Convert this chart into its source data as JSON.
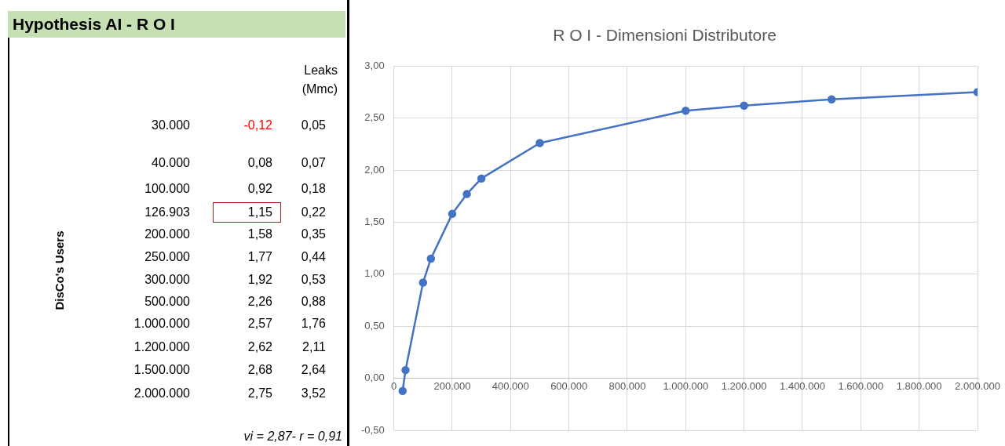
{
  "chart_data": [
    {
      "type": "other",
      "title": "Hypothesis AI - R O I",
      "ylabel": "DisCo's Users",
      "categories": [
        "30.000",
        "40.000",
        "100.000",
        "126.903",
        "200.000",
        "250.000",
        "300.000",
        "500.000",
        "1.000.000",
        "1.200.000",
        "1.500.000",
        "2.000.000"
      ],
      "series": [
        {
          "colors": [
            "#ff0000",
            "#000000",
            "#000000",
            "#000000",
            "#000000",
            "#000000",
            "#000000",
            "#000000",
            "#000000",
            "#000000",
            "#000000",
            "#000000"
          ],
          "values": [
            -0.12,
            0.08,
            0.92,
            1.15,
            1.58,
            1.77,
            1.92,
            2.26,
            2.57,
            2.62,
            2.68,
            2.75
          ],
          "value_labels": [
            "-0,12",
            "0,08",
            "0,92",
            "1,15",
            "1,58",
            "1,77",
            "1,92",
            "2,26",
            "2,57",
            "2,62",
            "2,68",
            "2,75"
          ]
        },
        {
          "name": "Leaks (Mmc)",
          "color": "#000000",
          "values": [
            0.05,
            0.07,
            0.18,
            0.22,
            0.35,
            0.44,
            0.53,
            0.88,
            1.76,
            2.11,
            2.64,
            3.52
          ],
          "value_labels": [
            "0,05",
            "0,07",
            "0,18",
            "0,22",
            "0,35",
            "0,44",
            "0,53",
            "0,88",
            "1,76",
            "2,11",
            "2,64",
            "3,52"
          ]
        }
      ],
      "annotations": [
        "vi = 2,87- r = 0,91"
      ]
    },
    {
      "type": "line",
      "title": "R O I - Dimensioni Distributore",
      "x": [
        30000,
        40000,
        100000,
        126903,
        200000,
        250000,
        300000,
        500000,
        1000000,
        1200000,
        1500000,
        2000000
      ],
      "values": [
        -0.12,
        0.08,
        0.92,
        1.15,
        1.58,
        1.77,
        1.92,
        2.26,
        2.57,
        2.62,
        2.68,
        2.75
      ],
      "color": "#4472c4",
      "marker": "circle",
      "line_style": "solid",
      "grid": true,
      "xlim": [
        0,
        2000000
      ],
      "xticks": [
        0,
        {
          "value": 200000,
          "label": "200.000"
        },
        {
          "value": 400000,
          "label": "400.000"
        },
        {
          "value": 600000,
          "label": "600.000"
        },
        {
          "value": 800000,
          "label": "800.000"
        },
        {
          "value": 1000000,
          "label": "1.000.000"
        },
        {
          "value": 1200000,
          "label": "1.200.000"
        },
        {
          "value": 1400000,
          "label": "1.400.000"
        },
        {
          "value": 1600000,
          "label": "1.600.000"
        },
        {
          "value": 1800000,
          "label": "1.800.000"
        },
        {
          "value": 2000000,
          "label": "2.000.000"
        }
      ],
      "ylim": [
        -0.5,
        3
      ],
      "yticks": [
        {
          "value": -0.5,
          "label": "-0,50"
        },
        {
          "value": 0,
          "label": "0,00"
        },
        {
          "value": 0.5,
          "label": "0,50"
        },
        {
          "value": 1,
          "label": "1,00"
        },
        {
          "value": 1.5,
          "label": "1,50"
        },
        {
          "value": 2,
          "label": "2,00"
        },
        {
          "value": 2.5,
          "label": "2,50"
        },
        {
          "value": 3,
          "label": "3,00"
        }
      ]
    }
  ]
}
